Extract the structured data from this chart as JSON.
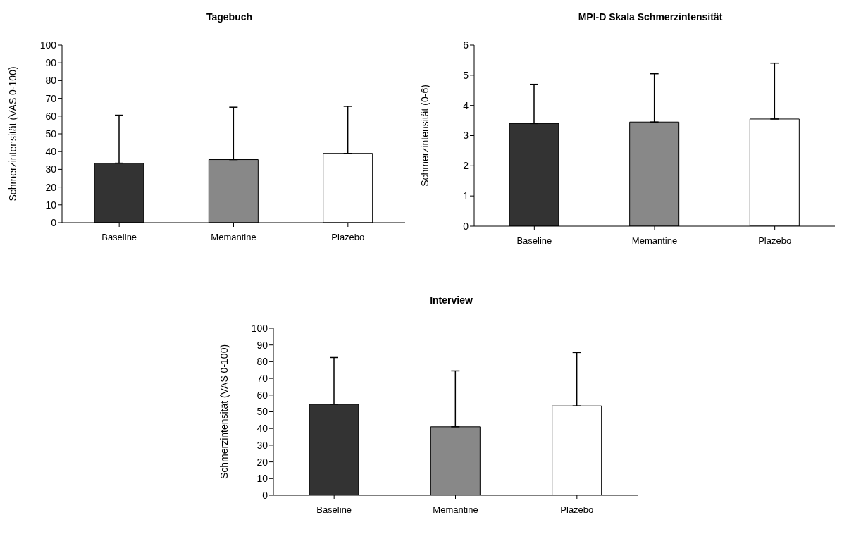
{
  "chart_data": [
    {
      "type": "bar",
      "title": "Tagebuch",
      "ylabel": "Schmerzintensität (VAS 0-100)",
      "categories": [
        "Baseline",
        "Memantine",
        "Plazebo"
      ],
      "values": [
        33.5,
        35.5,
        39
      ],
      "errors": [
        [
          33.5,
          60.5
        ],
        [
          35.5,
          65
        ],
        [
          39,
          65.5
        ]
      ],
      "colors": [
        "#333333",
        "#888888",
        "#ffffff"
      ],
      "ylim": [
        0,
        100
      ],
      "yticks": [
        0,
        10,
        20,
        30,
        40,
        50,
        60,
        70,
        80,
        90,
        100
      ],
      "grid": false,
      "legend": false
    },
    {
      "type": "bar",
      "title": "MPI-D Skala Schmerzintensität",
      "ylabel": "Schmerzintensität (0-6)",
      "categories": [
        "Baseline",
        "Memantine",
        "Plazebo"
      ],
      "values": [
        3.4,
        3.45,
        3.55
      ],
      "errors": [
        [
          3.4,
          4.7
        ],
        [
          3.45,
          5.05
        ],
        [
          3.55,
          5.4
        ]
      ],
      "colors": [
        "#333333",
        "#888888",
        "#ffffff"
      ],
      "ylim": [
        0,
        6
      ],
      "yticks": [
        0,
        1,
        2,
        3,
        4,
        5,
        6
      ],
      "grid": false,
      "legend": false
    },
    {
      "type": "bar",
      "title": "Interview",
      "ylabel": "Schmerzintensität (VAS 0-100)",
      "categories": [
        "Baseline",
        "Memantine",
        "Plazebo"
      ],
      "values": [
        54.5,
        41,
        53.5
      ],
      "errors": [
        [
          54.5,
          82.5
        ],
        [
          41,
          74.5
        ],
        [
          53.5,
          85.5
        ]
      ],
      "colors": [
        "#333333",
        "#888888",
        "#ffffff"
      ],
      "ylim": [
        0,
        100
      ],
      "yticks": [
        0,
        10,
        20,
        30,
        40,
        50,
        60,
        70,
        80,
        90,
        100
      ],
      "grid": false,
      "legend": false
    }
  ]
}
